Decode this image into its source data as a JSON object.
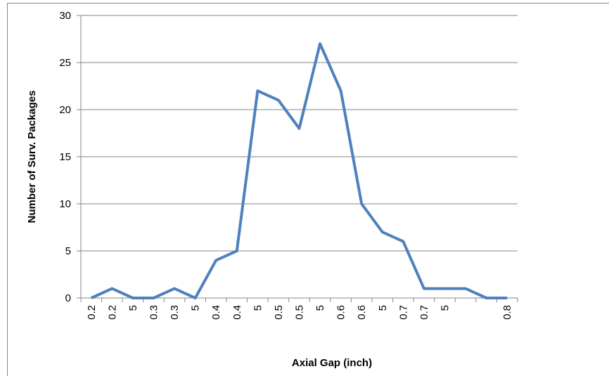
{
  "chart_data": {
    "type": "line",
    "x_label": "Axial Gap (inch)",
    "y_label": "Number of Surv. Packages",
    "categories": [
      "0.2",
      "0.2",
      "5",
      "0.3",
      "0.3",
      "5",
      "0.4",
      "0.4",
      "5",
      "0.5",
      "0.5",
      "5",
      "0.6",
      "0.6",
      "5",
      "0.7",
      "0.7",
      "5",
      null,
      null,
      "0.8"
    ],
    "series": [
      {
        "name": "Number of Surv. Packages",
        "color": "#4f81bd",
        "values": [
          0,
          1,
          0,
          0,
          1,
          0,
          4,
          5,
          22,
          21,
          18,
          27,
          22,
          10,
          7,
          6,
          1,
          1,
          1,
          0,
          0
        ]
      }
    ],
    "ylim": [
      0,
      30
    ],
    "yticks": [
      0,
      5,
      10,
      15,
      20,
      25,
      30
    ],
    "grid": true
  }
}
